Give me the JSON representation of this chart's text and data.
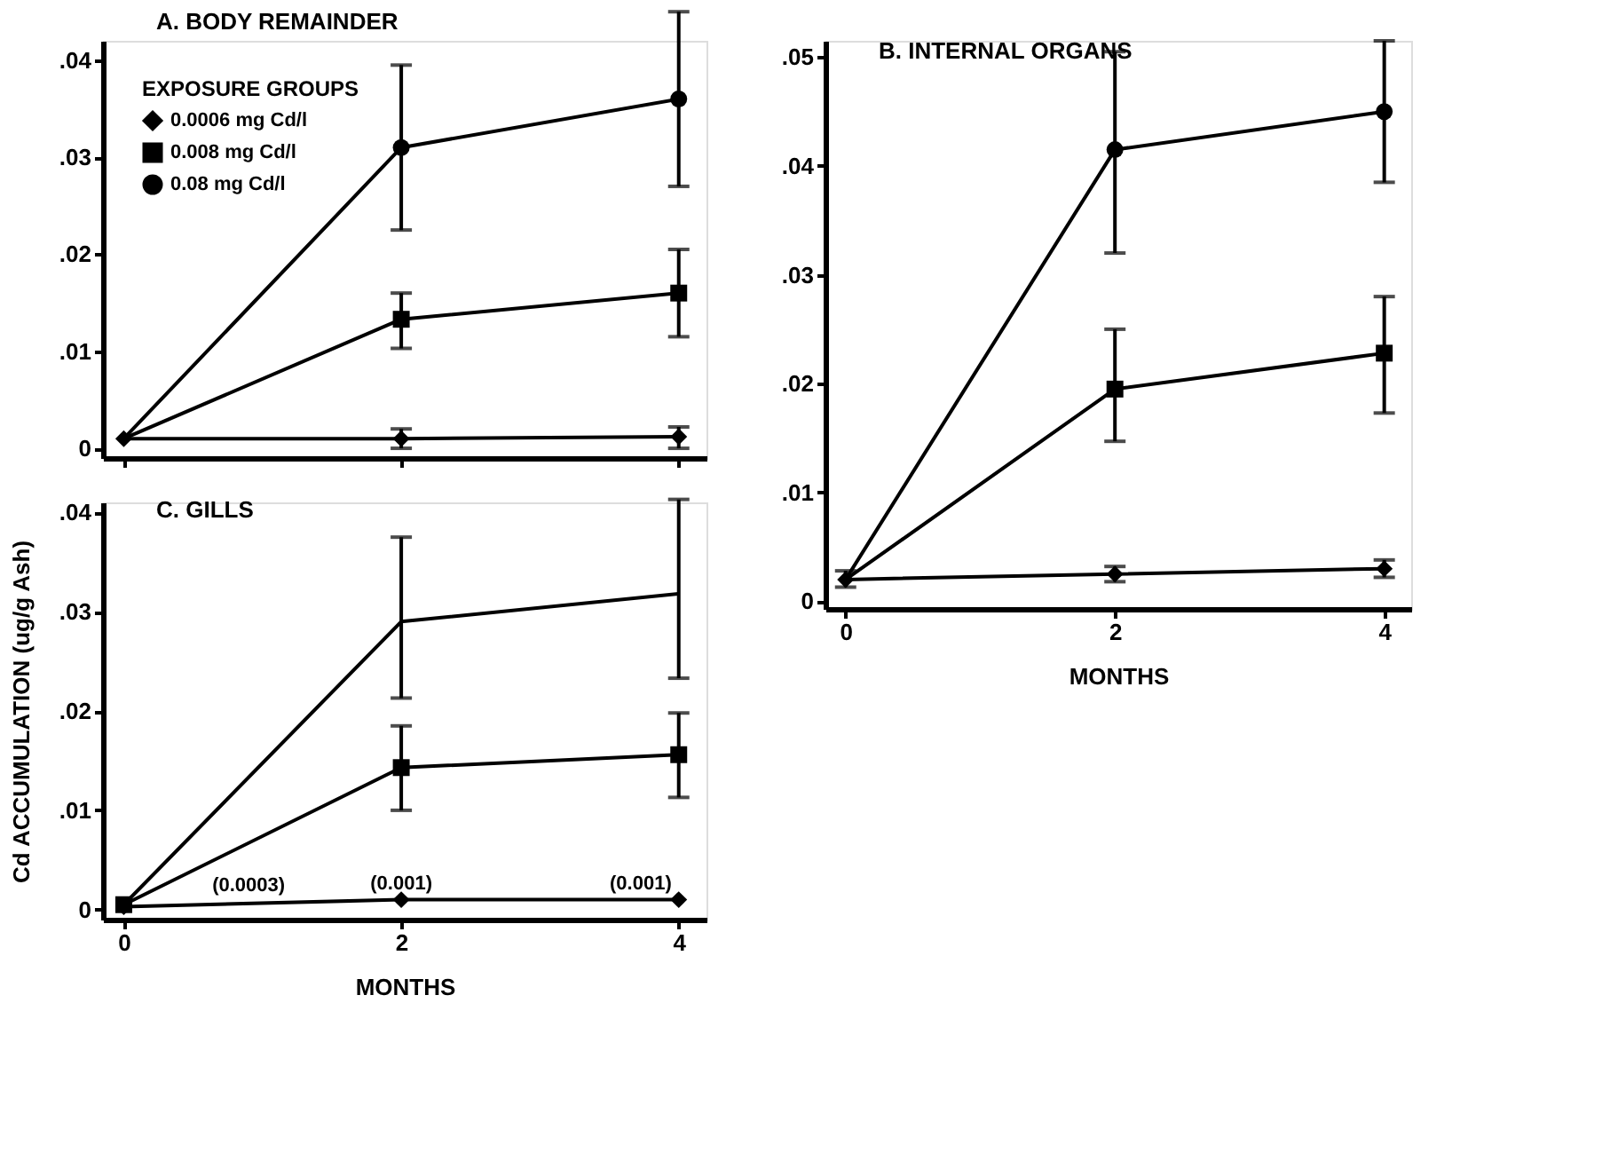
{
  "chart_data": [
    {
      "type": "line",
      "title": "A. BODY REMAINDER",
      "legend_title": "EXPOSURE GROUPS",
      "legend": "top left",
      "grid": false,
      "tick_labels": "y",
      "x": [
        0,
        2,
        4
      ],
      "xlim": [
        -0.15,
        4.2
      ],
      "xticks": [
        {
          "value": 0,
          "label": null
        },
        {
          "value": 2,
          "label": null
        },
        {
          "value": 4,
          "label": null
        }
      ],
      "ylim": [
        -0.001,
        0.042
      ],
      "yticks": [
        0,
        {
          "value": 0.01,
          "label": ".01"
        },
        {
          "value": 0.02,
          "label": ".02"
        },
        {
          "value": 0.03,
          "label": ".03"
        },
        {
          "value": 0.04,
          "label": ".04"
        }
      ],
      "series": [
        {
          "name": "0.0006 mg Cd/l",
          "color": "#000000",
          "marker": "diamond",
          "values": [
            0.001,
            0.001,
            0.0012
          ],
          "errors": [
            null,
            [
              0.0,
              0.002
            ],
            [
              0.0,
              0.0022
            ]
          ]
        },
        {
          "name": "0.008 mg Cd/l",
          "color": "#000000",
          "marker": "square",
          "values": [
            0.001,
            0.0133,
            0.016
          ],
          "errors": [
            null,
            [
              0.0103,
              0.016
            ],
            [
              0.0115,
              0.0205
            ]
          ]
        },
        {
          "name": "0.08 mg Cd/l",
          "color": "#000000",
          "marker": "circle",
          "values": [
            0.001,
            0.031,
            0.036
          ],
          "errors": [
            null,
            [
              0.0225,
              0.0395
            ],
            [
              0.027,
              0.045
            ]
          ]
        }
      ]
    },
    {
      "type": "line",
      "title": "C. GILLS",
      "xlabel": "MONTHS",
      "annotations": [
        {
          "text": "(0.0003)",
          "x": 0.9,
          "y": 0.0008
        }
      ],
      "ylabel": "Cd ACCUMULATION (ug/g Ash)",
      "grid": false,
      "x": [
        0,
        2,
        4
      ],
      "xlim": [
        -0.15,
        4.2
      ],
      "xticks": [
        0,
        2,
        4
      ],
      "ylim": [
        -0.001,
        0.041
      ],
      "yticks": [
        0,
        {
          "value": 0.01,
          "label": ".01"
        },
        {
          "value": 0.02,
          "label": ".02"
        },
        {
          "value": 0.03,
          "label": ".03"
        },
        {
          "value": 0.04,
          "label": ".04"
        }
      ],
      "series": [
        {
          "color": "#000000",
          "marker": "diamond",
          "values": [
            0.0003,
            0.001,
            0.001
          ],
          "value_labels": [
            null,
            "(0.001)",
            "(0.001)"
          ]
        },
        {
          "color": "#000000",
          "marker": "square",
          "values": [
            0.0005,
            0.0143,
            0.0156
          ],
          "errors": [
            null,
            [
              0.01,
              0.0185
            ],
            [
              0.0113,
              0.0198
            ]
          ]
        },
        {
          "color": "#000000",
          "marker": "none",
          "values": [
            0.0005,
            0.029,
            0.0318
          ],
          "errors": [
            null,
            [
              0.0213,
              0.0375
            ],
            [
              0.0233,
              0.0413
            ]
          ]
        }
      ]
    },
    {
      "type": "line",
      "title": "B. INTERNAL ORGANS",
      "xlabel": "MONTHS",
      "grid": false,
      "x": [
        0,
        2,
        4
      ],
      "xlim": [
        -0.15,
        4.2
      ],
      "xticks": [
        0,
        2,
        4
      ],
      "ylim": [
        -0.0007,
        0.0515
      ],
      "yticks": [
        0,
        {
          "value": 0.01,
          "label": ".01"
        },
        {
          "value": 0.02,
          "label": ".02"
        },
        {
          "value": 0.03,
          "label": ".03"
        },
        {
          "value": 0.04,
          "label": ".04"
        },
        {
          "value": 0.05,
          "label": ".05"
        }
      ],
      "series": [
        {
          "color": "#000000",
          "marker": "diamond",
          "values": [
            0.002,
            0.0025,
            0.003
          ],
          "errors": [
            [
              0.0013,
              0.0028
            ],
            [
              0.0018,
              0.0032
            ],
            [
              0.0022,
              0.0038
            ]
          ]
        },
        {
          "color": "#000000",
          "marker": "square",
          "values": [
            0.002,
            0.0195,
            0.0228
          ],
          "errors": [
            null,
            [
              0.0147,
              0.025
            ],
            [
              0.0173,
              0.028
            ]
          ]
        },
        {
          "color": "#000000",
          "marker": "circle",
          "values": [
            0.002,
            0.0415,
            0.045
          ],
          "errors": [
            null,
            [
              0.032,
              0.0505
            ],
            [
              0.0385,
              0.0515
            ]
          ]
        }
      ]
    }
  ]
}
